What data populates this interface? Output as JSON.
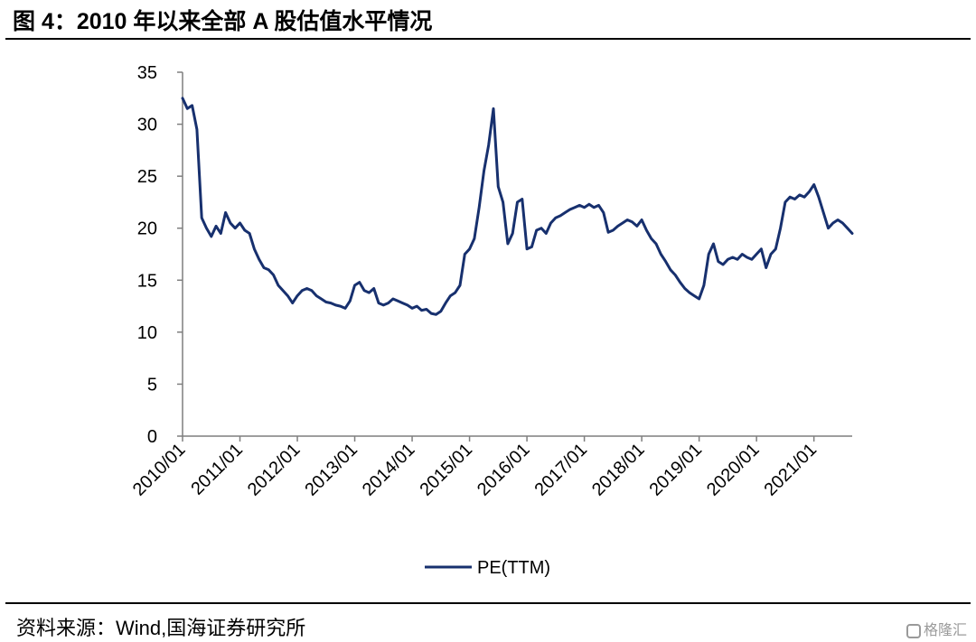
{
  "header": {
    "title": "图 4：2010 年以来全部 A 股估值水平情况"
  },
  "footer": {
    "source": "资料来源：Wind,国海证券研究所",
    "watermark": "格隆汇"
  },
  "colors": {
    "series": "#17306e",
    "axis": "#7f7f7f",
    "text": "#000000"
  },
  "chart_data": {
    "type": "line",
    "title": "",
    "xlabel": "",
    "ylabel": "",
    "ylim": [
      0,
      35
    ],
    "yticks": [
      0,
      5,
      10,
      15,
      20,
      25,
      30,
      35
    ],
    "xlim": [
      "2010/01",
      "2021/09"
    ],
    "xticks": [
      "2010/01",
      "2011/01",
      "2012/01",
      "2013/01",
      "2014/01",
      "2015/01",
      "2016/01",
      "2017/01",
      "2018/01",
      "2019/01",
      "2020/01",
      "2021/01"
    ],
    "grid": false,
    "legend": "bottom-center",
    "series": [
      {
        "name": "PE(TTM)",
        "x": [
          "2010/01",
          "2010/02",
          "2010/03",
          "2010/04",
          "2010/05",
          "2010/06",
          "2010/07",
          "2010/08",
          "2010/09",
          "2010/10",
          "2010/11",
          "2010/12",
          "2011/01",
          "2011/02",
          "2011/03",
          "2011/04",
          "2011/05",
          "2011/06",
          "2011/07",
          "2011/08",
          "2011/09",
          "2011/10",
          "2011/11",
          "2011/12",
          "2012/01",
          "2012/02",
          "2012/03",
          "2012/04",
          "2012/05",
          "2012/06",
          "2012/07",
          "2012/08",
          "2012/09",
          "2012/10",
          "2012/11",
          "2012/12",
          "2013/01",
          "2013/02",
          "2013/03",
          "2013/04",
          "2013/05",
          "2013/06",
          "2013/07",
          "2013/08",
          "2013/09",
          "2013/10",
          "2013/11",
          "2013/12",
          "2014/01",
          "2014/02",
          "2014/03",
          "2014/04",
          "2014/05",
          "2014/06",
          "2014/07",
          "2014/08",
          "2014/09",
          "2014/10",
          "2014/11",
          "2014/12",
          "2015/01",
          "2015/02",
          "2015/03",
          "2015/04",
          "2015/05",
          "2015/06",
          "2015/07",
          "2015/08",
          "2015/09",
          "2015/10",
          "2015/11",
          "2015/12",
          "2016/01",
          "2016/02",
          "2016/03",
          "2016/04",
          "2016/05",
          "2016/06",
          "2016/07",
          "2016/08",
          "2016/09",
          "2016/10",
          "2016/11",
          "2016/12",
          "2017/01",
          "2017/02",
          "2017/03",
          "2017/04",
          "2017/05",
          "2017/06",
          "2017/07",
          "2017/08",
          "2017/09",
          "2017/10",
          "2017/11",
          "2017/12",
          "2018/01",
          "2018/02",
          "2018/03",
          "2018/04",
          "2018/05",
          "2018/06",
          "2018/07",
          "2018/08",
          "2018/09",
          "2018/10",
          "2018/11",
          "2018/12",
          "2019/01",
          "2019/02",
          "2019/03",
          "2019/04",
          "2019/05",
          "2019/06",
          "2019/07",
          "2019/08",
          "2019/09",
          "2019/10",
          "2019/11",
          "2019/12",
          "2020/01",
          "2020/02",
          "2020/03",
          "2020/04",
          "2020/05",
          "2020/06",
          "2020/07",
          "2020/08",
          "2020/09",
          "2020/10",
          "2020/11",
          "2020/12",
          "2021/01",
          "2021/02",
          "2021/03",
          "2021/04",
          "2021/05",
          "2021/06",
          "2021/07",
          "2021/08",
          "2021/09"
        ],
        "values": [
          32.5,
          31.5,
          31.8,
          29.5,
          21.0,
          20.0,
          19.2,
          20.2,
          19.5,
          21.5,
          20.5,
          20.0,
          20.5,
          19.8,
          19.5,
          18.0,
          17.0,
          16.2,
          16.0,
          15.5,
          14.5,
          14.0,
          13.5,
          12.8,
          13.5,
          14.0,
          14.2,
          14.0,
          13.5,
          13.2,
          12.9,
          12.8,
          12.6,
          12.5,
          12.3,
          13.0,
          14.5,
          14.8,
          14.0,
          13.8,
          14.2,
          12.8,
          12.6,
          12.8,
          13.2,
          13.0,
          12.8,
          12.6,
          12.3,
          12.5,
          12.1,
          12.2,
          11.8,
          11.7,
          12.0,
          12.8,
          13.5,
          13.8,
          14.5,
          17.5,
          18.0,
          19.0,
          22.0,
          25.5,
          28.0,
          31.5,
          24.0,
          22.5,
          18.5,
          19.5,
          22.5,
          22.8,
          18.0,
          18.2,
          19.8,
          20.0,
          19.5,
          20.5,
          21.0,
          21.2,
          21.5,
          21.8,
          22.0,
          22.2,
          22.0,
          22.3,
          22.0,
          22.2,
          21.5,
          19.6,
          19.8,
          20.2,
          20.5,
          20.8,
          20.6,
          20.2,
          20.8,
          19.8,
          19.0,
          18.5,
          17.5,
          16.8,
          16.0,
          15.5,
          14.8,
          14.2,
          13.8,
          13.5,
          13.2,
          14.5,
          17.5,
          18.5,
          16.8,
          16.5,
          17.0,
          17.2,
          17.0,
          17.5,
          17.2,
          17.0,
          17.5,
          18.0,
          16.2,
          17.5,
          18.0,
          20.0,
          22.5,
          23.0,
          22.8,
          23.2,
          23.0,
          23.5,
          24.2,
          23.0,
          21.5,
          20.0,
          20.5,
          20.8,
          20.5,
          20.0,
          19.5
        ]
      }
    ]
  }
}
